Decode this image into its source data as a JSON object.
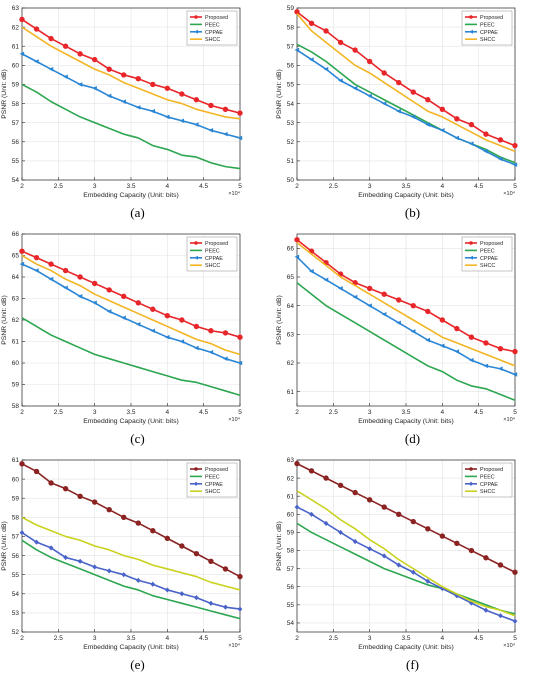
{
  "figure": {
    "panel_labels": [
      "(a)",
      "(b)",
      "(c)",
      "(d)",
      "(e)",
      "(f)"
    ]
  },
  "chart_data": [
    {
      "type": "line",
      "panel": "(a)",
      "xlabel": "Embedding Capacity (Unit: bits)",
      "ylabel": "PSNR (Unit: dB)",
      "x_multiplier": "×10⁴",
      "xlim": [
        2,
        5
      ],
      "ylim": [
        54,
        63
      ],
      "xticks": [
        2,
        2.5,
        3,
        3.5,
        4,
        4.5,
        5
      ],
      "yticks": [
        54,
        55,
        56,
        57,
        58,
        59,
        60,
        61,
        62,
        63
      ],
      "grid": true,
      "legend_position": "top-right",
      "x": [
        2,
        2.2,
        2.4,
        2.6,
        2.8,
        3.0,
        3.2,
        3.4,
        3.6,
        3.8,
        4.0,
        4.2,
        4.4,
        4.6,
        4.8,
        5.0
      ],
      "series": [
        {
          "name": "Proposed",
          "color": "#e8262a",
          "marker": "circle",
          "values": [
            62.4,
            61.9,
            61.4,
            61.0,
            60.6,
            60.3,
            59.8,
            59.5,
            59.3,
            59.0,
            58.8,
            58.5,
            58.2,
            57.9,
            57.7,
            57.5
          ]
        },
        {
          "name": "PEEC",
          "color": "#2da650",
          "marker": "none",
          "values": [
            59.0,
            58.6,
            58.1,
            57.7,
            57.3,
            57.0,
            56.7,
            56.4,
            56.2,
            55.8,
            55.6,
            55.3,
            55.2,
            54.9,
            54.7,
            54.6
          ]
        },
        {
          "name": "CPPAE",
          "color": "#2a86d5",
          "marker": "triangle",
          "values": [
            60.6,
            60.2,
            59.8,
            59.4,
            59.0,
            58.8,
            58.4,
            58.1,
            57.8,
            57.6,
            57.3,
            57.1,
            56.9,
            56.6,
            56.4,
            56.2
          ]
        },
        {
          "name": "SHCC",
          "color": "#f2b524",
          "marker": "none",
          "values": [
            62.0,
            61.5,
            61.0,
            60.6,
            60.2,
            59.8,
            59.5,
            59.1,
            58.8,
            58.5,
            58.2,
            58.0,
            57.7,
            57.5,
            57.3,
            57.2
          ]
        }
      ]
    },
    {
      "type": "line",
      "panel": "(b)",
      "xlabel": "Embedding Capacity (Unit: bits)",
      "ylabel": "PSNR (Unit: dB)",
      "x_multiplier": "×10⁴",
      "xlim": [
        2,
        5
      ],
      "ylim": [
        50,
        59
      ],
      "xticks": [
        2,
        2.5,
        3,
        3.5,
        4,
        4.5,
        5
      ],
      "yticks": [
        50,
        51,
        52,
        53,
        54,
        55,
        56,
        57,
        58,
        59
      ],
      "grid": true,
      "legend_position": "top-right",
      "x": [
        2,
        2.2,
        2.4,
        2.6,
        2.8,
        3.0,
        3.2,
        3.4,
        3.6,
        3.8,
        4.0,
        4.2,
        4.4,
        4.6,
        4.8,
        5.0
      ],
      "series": [
        {
          "name": "Proposed",
          "color": "#e8262a",
          "marker": "circle",
          "values": [
            58.8,
            58.2,
            57.8,
            57.2,
            56.8,
            56.2,
            55.6,
            55.1,
            54.6,
            54.2,
            53.7,
            53.2,
            52.9,
            52.4,
            52.1,
            51.8
          ]
        },
        {
          "name": "PEEC",
          "color": "#2da650",
          "marker": "none",
          "values": [
            57.1,
            56.7,
            56.2,
            55.6,
            55.0,
            54.6,
            54.2,
            53.8,
            53.4,
            53.0,
            52.6,
            52.2,
            51.9,
            51.6,
            51.2,
            50.9
          ]
        },
        {
          "name": "CPPAE",
          "color": "#2a86d5",
          "marker": "triangle",
          "values": [
            56.8,
            56.3,
            55.8,
            55.2,
            54.8,
            54.4,
            54.0,
            53.6,
            53.3,
            52.9,
            52.6,
            52.2,
            51.9,
            51.5,
            51.1,
            50.8
          ]
        },
        {
          "name": "SHCC",
          "color": "#f2b524",
          "marker": "none",
          "values": [
            58.7,
            57.8,
            57.2,
            56.6,
            56.0,
            55.6,
            55.1,
            54.6,
            54.1,
            53.6,
            53.3,
            52.9,
            52.5,
            52.1,
            51.8,
            51.5
          ]
        }
      ]
    },
    {
      "type": "line",
      "panel": "(c)",
      "xlabel": "Embedding Capacity (Unit: bits)",
      "ylabel": "PSNR (Unit: dB)",
      "x_multiplier": "×10⁴",
      "xlim": [
        2,
        5
      ],
      "ylim": [
        58,
        66
      ],
      "xticks": [
        2,
        2.5,
        3,
        3.5,
        4,
        4.5,
        5
      ],
      "yticks": [
        58,
        59,
        60,
        61,
        62,
        63,
        64,
        65,
        66
      ],
      "grid": true,
      "legend_position": "top-right",
      "x": [
        2,
        2.2,
        2.4,
        2.6,
        2.8,
        3.0,
        3.2,
        3.4,
        3.6,
        3.8,
        4.0,
        4.2,
        4.4,
        4.6,
        4.8,
        5.0
      ],
      "series": [
        {
          "name": "Proposed",
          "color": "#e8262a",
          "marker": "circle",
          "values": [
            65.2,
            64.9,
            64.6,
            64.3,
            64.0,
            63.7,
            63.4,
            63.1,
            62.8,
            62.5,
            62.2,
            62.0,
            61.7,
            61.5,
            61.4,
            61.2
          ]
        },
        {
          "name": "PEEC",
          "color": "#2da650",
          "marker": "none",
          "values": [
            62.1,
            61.7,
            61.3,
            61.0,
            60.7,
            60.4,
            60.2,
            60.0,
            59.8,
            59.6,
            59.4,
            59.2,
            59.1,
            58.9,
            58.7,
            58.5
          ]
        },
        {
          "name": "CPPAE",
          "color": "#2a86d5",
          "marker": "triangle",
          "values": [
            64.6,
            64.3,
            63.9,
            63.5,
            63.1,
            62.8,
            62.4,
            62.1,
            61.8,
            61.5,
            61.2,
            61.0,
            60.7,
            60.5,
            60.2,
            60.0
          ]
        },
        {
          "name": "SHCC",
          "color": "#f2b524",
          "marker": "none",
          "values": [
            65.0,
            64.6,
            64.3,
            63.9,
            63.6,
            63.2,
            62.9,
            62.6,
            62.3,
            62.0,
            61.7,
            61.4,
            61.1,
            60.9,
            60.6,
            60.4
          ]
        }
      ]
    },
    {
      "type": "line",
      "panel": "(d)",
      "xlabel": "Embedding Capacity (Unit: bits)",
      "ylabel": "PSNR (Unit: dB)",
      "x_multiplier": "×10⁴",
      "xlim": [
        2,
        5
      ],
      "ylim": [
        60.5,
        66.5
      ],
      "xticks": [
        2,
        2.5,
        3,
        3.5,
        4,
        4.5,
        5
      ],
      "yticks": [
        61,
        62,
        63,
        64,
        65,
        66
      ],
      "grid": true,
      "legend_position": "top-right",
      "x": [
        2,
        2.2,
        2.4,
        2.6,
        2.8,
        3.0,
        3.2,
        3.4,
        3.6,
        3.8,
        4.0,
        4.2,
        4.4,
        4.6,
        4.8,
        5.0
      ],
      "series": [
        {
          "name": "Proposed",
          "color": "#e8262a",
          "marker": "circle",
          "values": [
            66.3,
            65.9,
            65.5,
            65.1,
            64.8,
            64.6,
            64.4,
            64.2,
            64.0,
            63.8,
            63.5,
            63.2,
            62.9,
            62.7,
            62.5,
            62.4
          ]
        },
        {
          "name": "PEEC",
          "color": "#2da650",
          "marker": "none",
          "values": [
            64.8,
            64.4,
            64.0,
            63.7,
            63.4,
            63.1,
            62.8,
            62.5,
            62.2,
            61.9,
            61.7,
            61.4,
            61.2,
            61.1,
            60.9,
            60.7
          ]
        },
        {
          "name": "CPPAE",
          "color": "#2a86d5",
          "marker": "triangle",
          "values": [
            65.7,
            65.2,
            64.9,
            64.6,
            64.3,
            64.0,
            63.7,
            63.4,
            63.1,
            62.8,
            62.6,
            62.4,
            62.1,
            61.9,
            61.8,
            61.6
          ]
        },
        {
          "name": "SHCC",
          "color": "#f2b524",
          "marker": "none",
          "values": [
            66.2,
            65.8,
            65.4,
            65.0,
            64.7,
            64.4,
            64.1,
            63.8,
            63.5,
            63.2,
            62.9,
            62.7,
            62.5,
            62.3,
            62.1,
            61.9
          ]
        }
      ]
    },
    {
      "type": "line",
      "panel": "(e)",
      "xlabel": "Embedding Capacity (Unit: bits)",
      "ylabel": "PSNR (Unit: dB)",
      "x_multiplier": "×10⁴",
      "xlim": [
        2,
        5
      ],
      "ylim": [
        52,
        61
      ],
      "xticks": [
        2,
        2.5,
        3,
        3.5,
        4,
        4.5,
        5
      ],
      "yticks": [
        52,
        53,
        54,
        55,
        56,
        57,
        58,
        59,
        60,
        61
      ],
      "grid": true,
      "legend_position": "top-right",
      "x": [
        2,
        2.2,
        2.4,
        2.6,
        2.8,
        3.0,
        3.2,
        3.4,
        3.6,
        3.8,
        4.0,
        4.2,
        4.4,
        4.6,
        4.8,
        5.0
      ],
      "series": [
        {
          "name": "Proposed",
          "color": "#8b2323",
          "marker": "circle",
          "values": [
            60.8,
            60.4,
            59.8,
            59.5,
            59.1,
            58.8,
            58.4,
            58.0,
            57.7,
            57.3,
            56.9,
            56.5,
            56.1,
            55.7,
            55.3,
            54.9
          ]
        },
        {
          "name": "PEEC",
          "color": "#2da650",
          "marker": "none",
          "values": [
            56.8,
            56.3,
            55.9,
            55.6,
            55.3,
            55.0,
            54.7,
            54.4,
            54.2,
            53.9,
            53.7,
            53.5,
            53.3,
            53.1,
            52.9,
            52.7
          ]
        },
        {
          "name": "CPPAE",
          "color": "#4a63c8",
          "marker": "diamond",
          "values": [
            57.2,
            56.7,
            56.4,
            55.9,
            55.7,
            55.4,
            55.2,
            55.0,
            54.7,
            54.5,
            54.2,
            54.0,
            53.8,
            53.5,
            53.3,
            53.2
          ]
        },
        {
          "name": "SHCC",
          "color": "#c9d21e",
          "marker": "none",
          "values": [
            58.0,
            57.6,
            57.3,
            57.0,
            56.8,
            56.5,
            56.3,
            56.0,
            55.8,
            55.5,
            55.3,
            55.1,
            54.9,
            54.6,
            54.4,
            54.2
          ]
        }
      ]
    },
    {
      "type": "line",
      "panel": "(f)",
      "xlabel": "Embedding Capacity (Unit: bits)",
      "ylabel": "PSNR (Unit: dB)",
      "x_multiplier": "×10⁴",
      "xlim": [
        2,
        5
      ],
      "ylim": [
        53.5,
        63
      ],
      "xticks": [
        2,
        2.5,
        3,
        3.5,
        4,
        4.5,
        5
      ],
      "yticks": [
        54,
        55,
        56,
        57,
        58,
        59,
        60,
        61,
        62,
        63
      ],
      "grid": true,
      "legend_position": "top-right",
      "x": [
        2,
        2.2,
        2.4,
        2.6,
        2.8,
        3.0,
        3.2,
        3.4,
        3.6,
        3.8,
        4.0,
        4.2,
        4.4,
        4.6,
        4.8,
        5.0
      ],
      "series": [
        {
          "name": "Proposed",
          "color": "#8b2323",
          "marker": "circle",
          "values": [
            62.8,
            62.4,
            62.0,
            61.6,
            61.2,
            60.8,
            60.4,
            60.0,
            59.6,
            59.2,
            58.8,
            58.4,
            58.0,
            57.6,
            57.2,
            56.8
          ]
        },
        {
          "name": "PEEC",
          "color": "#2da650",
          "marker": "none",
          "values": [
            59.5,
            59.0,
            58.6,
            58.2,
            57.8,
            57.4,
            57.0,
            56.7,
            56.4,
            56.1,
            55.9,
            55.6,
            55.3,
            55.0,
            54.7,
            54.5
          ]
        },
        {
          "name": "CPPAE",
          "color": "#4a63c8",
          "marker": "diamond",
          "values": [
            60.4,
            60.0,
            59.5,
            59.0,
            58.5,
            58.1,
            57.7,
            57.2,
            56.8,
            56.3,
            55.9,
            55.5,
            55.1,
            54.7,
            54.4,
            54.1
          ]
        },
        {
          "name": "SHCC",
          "color": "#c9d21e",
          "marker": "none",
          "values": [
            61.3,
            60.8,
            60.3,
            59.7,
            59.2,
            58.6,
            58.1,
            57.5,
            57.0,
            56.5,
            56.0,
            55.6,
            55.2,
            54.9,
            54.7,
            54.4
          ]
        }
      ]
    }
  ]
}
